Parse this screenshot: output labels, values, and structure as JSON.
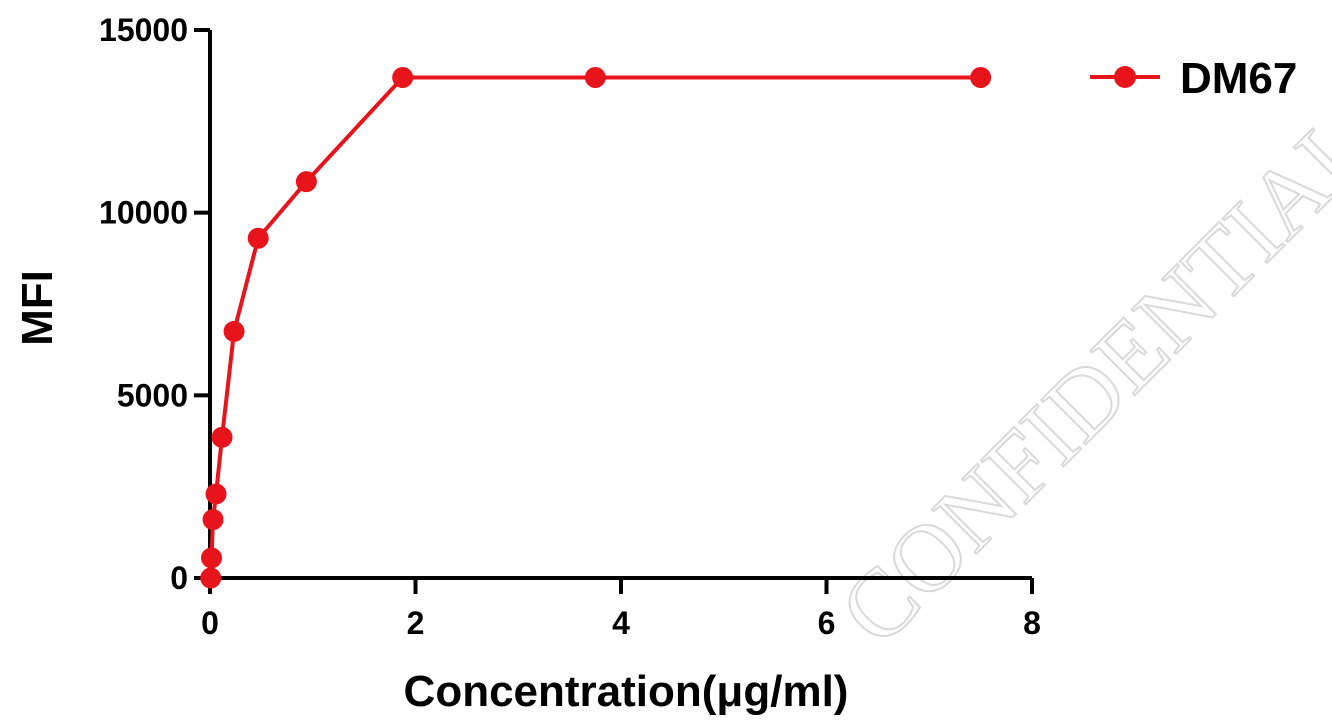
{
  "chart_data": {
    "type": "line",
    "xlabel": "Concentration(μg/ml)",
    "ylabel": "MFI",
    "xlim": [
      0,
      8
    ],
    "ylim": [
      0,
      15000
    ],
    "xticks": [
      "0",
      "2",
      "4",
      "6",
      "8"
    ],
    "yticks": [
      "0",
      "5000",
      "10000",
      "15000"
    ],
    "grid": false,
    "legend_position": "top-right",
    "series": [
      {
        "name": "DM67",
        "color": "#e8141c",
        "marker": "circle",
        "x": [
          0.0073,
          0.0146,
          0.0293,
          0.0586,
          0.117,
          0.234,
          0.469,
          0.938,
          1.875,
          3.75,
          7.5
        ],
        "y": [
          0,
          550,
          1600,
          2300,
          3850,
          6750,
          9300,
          10850,
          13700,
          13700,
          13700
        ]
      }
    ]
  },
  "watermark": "CONFIDENTIAL"
}
